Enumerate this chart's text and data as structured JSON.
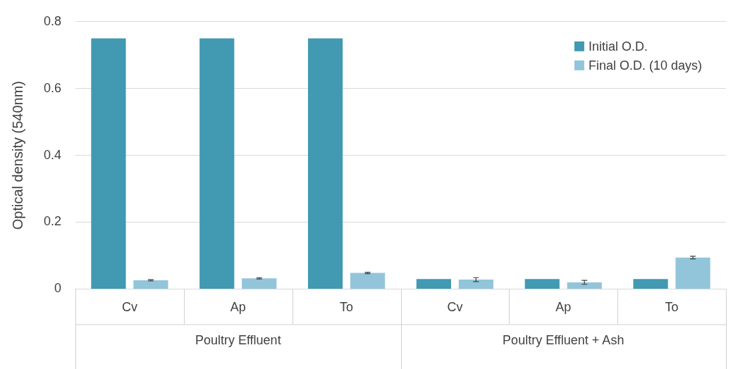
{
  "chart_data": {
    "type": "bar",
    "ylabel": "Optical density (540nm)",
    "categories": [
      "Cv",
      "Ap",
      "To",
      "Cv",
      "Ap",
      "To"
    ],
    "series": [
      {
        "name": "Initial O.D.",
        "color": "#4199b2",
        "values": [
          0.75,
          0.75,
          0.75,
          0.03,
          0.03,
          0.03
        ]
      },
      {
        "name": "Final O.D. (10 days)",
        "color": "#92c5da",
        "values": [
          0.026,
          0.032,
          0.048,
          0.028,
          0.02,
          0.094
        ],
        "errors": [
          0.002,
          0.002,
          0.002,
          0.006,
          0.006,
          0.004
        ]
      }
    ],
    "ylim": [
      0,
      0.8
    ],
    "yticks": [
      {
        "value": 0,
        "label": "0"
      },
      0.2,
      0.4,
      0.6,
      0.8
    ],
    "grid": "y",
    "legend": "top right",
    "annotations": [
      "Poultry Effluent",
      "Poultry Effluent + Ash"
    ]
  }
}
